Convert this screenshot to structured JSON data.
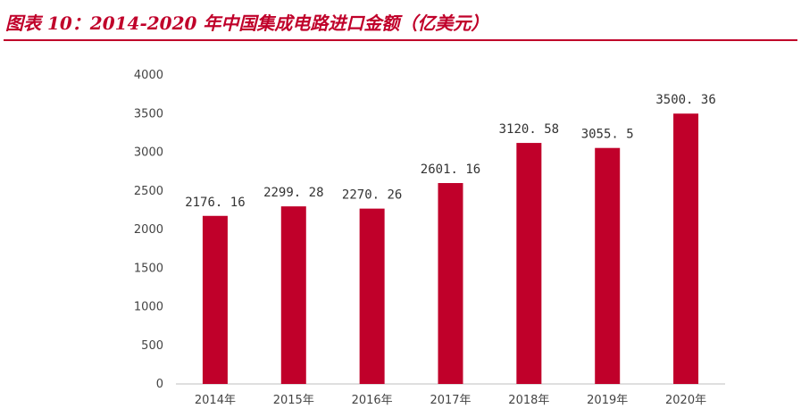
{
  "header": {
    "title": "图表 10：2014-2020 年中国集成电路进口金额（亿美元）"
  },
  "colors": {
    "accent": "#c0002a",
    "bar": "#c0002a"
  },
  "chart_data": {
    "type": "bar",
    "title": "",
    "xlabel": "",
    "ylabel": "",
    "categories": [
      "2014年",
      "2015年",
      "2016年",
      "2017年",
      "2018年",
      "2019年",
      "2020年"
    ],
    "values": [
      2176.16,
      2299.28,
      2270.26,
      2601.16,
      3120.58,
      3055.5,
      3500.36
    ],
    "value_labels": [
      "2176. 16",
      "2299. 28",
      "2270. 26",
      "2601. 16",
      "3120. 58",
      "3055. 5",
      "3500. 36"
    ],
    "ylim": [
      0,
      4000
    ],
    "yticks": [
      0,
      500,
      1000,
      1500,
      2000,
      2500,
      3000,
      3500,
      4000
    ],
    "grid": false,
    "legend": "none"
  }
}
